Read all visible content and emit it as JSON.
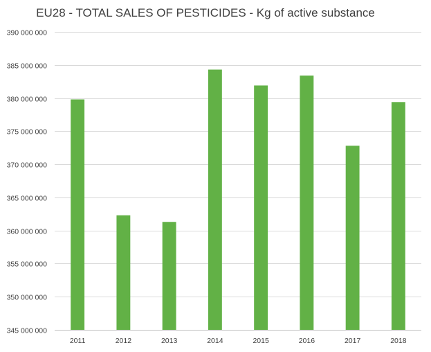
{
  "chart_data": {
    "type": "bar",
    "title": "EU28 - TOTAL SALES OF PESTICIDES - Kg of active substance",
    "xlabel": "",
    "ylabel": "",
    "categories": [
      "2011",
      "2012",
      "2013",
      "2014",
      "2015",
      "2016",
      "2017",
      "2018"
    ],
    "series": [
      {
        "name": "Total sales of pesticides (kg of active substance)",
        "values": [
          379800000,
          362300000,
          361300000,
          384300000,
          381900000,
          383400000,
          372800000,
          379400000
        ],
        "color": "#62b146"
      }
    ],
    "ylim": [
      345000000,
      390000000
    ],
    "yticks": [
      345000000,
      350000000,
      355000000,
      360000000,
      365000000,
      370000000,
      375000000,
      380000000,
      385000000,
      390000000
    ],
    "ytick_labels": [
      "345 000 000",
      "350 000 000",
      "355 000 000",
      "360 000 000",
      "365 000 000",
      "370 000 000",
      "375 000 000",
      "380 000 000",
      "385 000 000",
      "390 000 000"
    ],
    "grid": true,
    "legend": "none"
  },
  "colors": {
    "bar": "#62b146",
    "grid": "#d9d9d9",
    "text": "#404040"
  }
}
